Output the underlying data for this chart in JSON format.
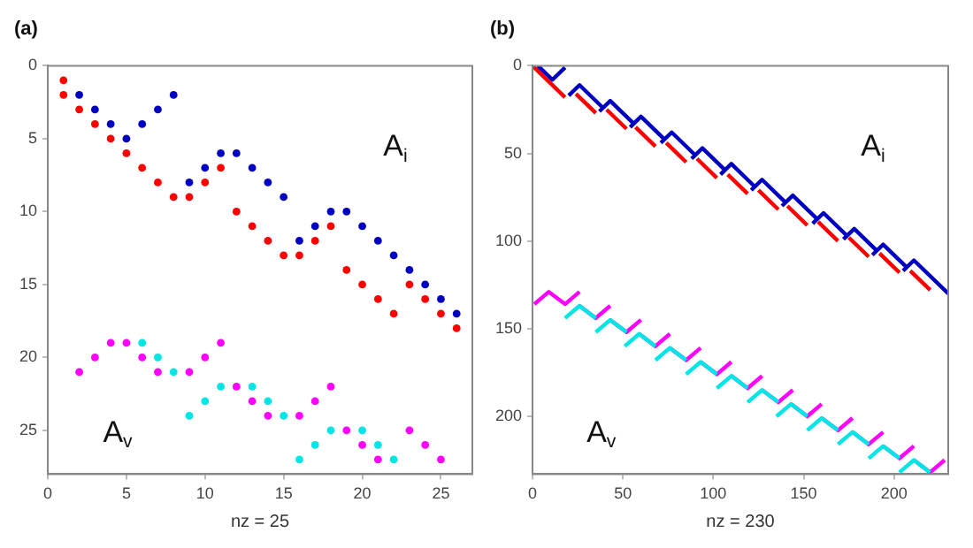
{
  "chart_data": [
    {
      "type": "scatter",
      "title": "(a)",
      "xlabel": "nz = 25",
      "xlim": [
        0,
        27
      ],
      "xticks": [
        0,
        5,
        10,
        15,
        20,
        25
      ],
      "ylim": [
        28,
        0
      ],
      "yticks": [
        0,
        5,
        10,
        15,
        20,
        25
      ],
      "marker": "circle",
      "annotations": [
        "A$_{i}$",
        "A$_{v}$"
      ],
      "series": [
        {
          "color": "#ff0000",
          "x": [
            1,
            1,
            2,
            3,
            4,
            5,
            6,
            7,
            8,
            9,
            10,
            11,
            12,
            13,
            14,
            15,
            16,
            17,
            18,
            19,
            20,
            21,
            22,
            23,
            24,
            25,
            26
          ],
          "values": [
            1,
            2,
            3,
            4,
            5,
            6,
            7,
            8,
            9,
            9,
            8,
            7,
            10,
            11,
            12,
            13,
            13,
            12,
            11,
            14,
            15,
            16,
            17,
            15,
            16,
            17,
            18
          ]
        },
        {
          "color": "#0000c0",
          "x": [
            2,
            3,
            4,
            5,
            6,
            7,
            8,
            9,
            10,
            11,
            12,
            13,
            14,
            15,
            16,
            17,
            18,
            19,
            20,
            21,
            22,
            23,
            24,
            25,
            26
          ],
          "values": [
            2,
            3,
            4,
            5,
            4,
            3,
            2,
            8,
            7,
            6,
            6,
            7,
            8,
            9,
            12,
            11,
            10,
            10,
            11,
            12,
            13,
            14,
            15,
            16,
            17
          ]
        },
        {
          "color": "#ff00ff",
          "x": [
            2,
            3,
            4,
            5,
            6,
            7,
            9,
            10,
            11,
            12,
            13,
            14,
            16,
            17,
            18,
            19,
            20,
            21,
            23,
            24,
            25
          ],
          "values": [
            21,
            20,
            19,
            19,
            20,
            21,
            21,
            20,
            19,
            22,
            23,
            24,
            24,
            23,
            22,
            25,
            26,
            27,
            25,
            26,
            27
          ]
        },
        {
          "color": "#00e5e5",
          "x": [
            6,
            7,
            8,
            9,
            10,
            11,
            13,
            14,
            15,
            16,
            17,
            18,
            20,
            21,
            22
          ],
          "values": [
            19,
            20,
            21,
            24,
            23,
            22,
            22,
            23,
            24,
            27,
            26,
            25,
            25,
            26,
            27
          ]
        }
      ]
    },
    {
      "type": "line",
      "title": "(b)",
      "xlabel": "nz = 230",
      "xlim": [
        0,
        230
      ],
      "xticks": [
        0,
        50,
        100,
        150,
        200
      ],
      "ylim": [
        233,
        0
      ],
      "yticks": [
        0,
        50,
        100,
        150,
        200
      ],
      "line_style": "solid",
      "annotations": [
        "A$_{i}$",
        "A$_{v}$"
      ],
      "series": [
        {
          "color": "#ff0000",
          "x": [
            0,
            18,
            null,
            24,
            35,
            null,
            41,
            52,
            null,
            57,
            68,
            null,
            74,
            85,
            null,
            91,
            102,
            null,
            108,
            119,
            null,
            125,
            136,
            null,
            141,
            152,
            null,
            158,
            169,
            null,
            175,
            186,
            null,
            192,
            203,
            null,
            209,
            220
          ],
          "values": [
            0,
            18,
            null,
            16,
            27,
            null,
            25,
            36,
            null,
            35,
            46,
            null,
            44,
            55,
            null,
            53,
            64,
            null,
            62,
            73,
            null,
            71,
            82,
            null,
            80,
            91,
            null,
            89,
            100,
            null,
            98,
            109,
            null,
            107,
            118,
            null,
            117,
            128
          ]
        },
        {
          "color": "#0000c0",
          "x": [
            3,
            11,
            18,
            null,
            20,
            26,
            39,
            null,
            37,
            43,
            56,
            null,
            54,
            60,
            73,
            null,
            71,
            77,
            90,
            null,
            88,
            94,
            107,
            null,
            104,
            110,
            123,
            null,
            121,
            127,
            140,
            null,
            138,
            144,
            157,
            null,
            155,
            161,
            174,
            null,
            172,
            178,
            191,
            null,
            188,
            194,
            207,
            null,
            205,
            211,
            230
          ],
          "values": [
            0,
            8,
            1,
            null,
            17,
            11,
            24,
            null,
            26,
            20,
            33,
            null,
            35,
            29,
            42,
            null,
            44,
            38,
            51,
            null,
            53,
            47,
            60,
            null,
            62,
            56,
            69,
            null,
            71,
            65,
            78,
            null,
            80,
            74,
            87,
            null,
            90,
            84,
            97,
            null,
            99,
            93,
            106,
            null,
            108,
            102,
            115,
            null,
            117,
            111,
            130
          ]
        },
        {
          "color": "#ff00ff",
          "x": [
            1,
            9,
            18,
            26,
            null,
            26,
            35,
            43,
            null,
            43,
            52,
            60,
            null,
            59,
            68,
            76,
            null,
            76,
            85,
            93,
            null,
            93,
            102,
            110,
            null,
            110,
            119,
            127,
            null,
            127,
            136,
            144,
            null,
            143,
            152,
            160,
            null,
            160,
            169,
            177,
            null,
            177,
            186,
            194,
            null,
            194,
            203,
            211,
            null,
            211,
            220,
            228
          ],
          "values": [
            136,
            129,
            136,
            129,
            null,
            137,
            144,
            137,
            null,
            145,
            152,
            145,
            null,
            153,
            160,
            153,
            null,
            161,
            168,
            161,
            null,
            169,
            176,
            169,
            null,
            177,
            184,
            177,
            null,
            185,
            192,
            185,
            null,
            193,
            200,
            193,
            null,
            201,
            208,
            201,
            null,
            209,
            216,
            209,
            null,
            217,
            224,
            217,
            null,
            225,
            232,
            225
          ]
        },
        {
          "color": "#00e5e5",
          "x": [
            18,
            26,
            35,
            null,
            35,
            43,
            52,
            null,
            51,
            59,
            68,
            null,
            68,
            76,
            85,
            null,
            85,
            93,
            102,
            null,
            102,
            110,
            119,
            null,
            119,
            127,
            136,
            null,
            135,
            143,
            152,
            null,
            152,
            160,
            169,
            null,
            169,
            177,
            186,
            null,
            186,
            194,
            203,
            null,
            203,
            211,
            220
          ],
          "values": [
            144,
            137,
            144,
            null,
            152,
            145,
            152,
            null,
            160,
            153,
            160,
            null,
            168,
            161,
            168,
            null,
            176,
            169,
            176,
            null,
            184,
            177,
            184,
            null,
            192,
            185,
            192,
            null,
            200,
            193,
            200,
            null,
            208,
            201,
            208,
            null,
            216,
            209,
            216,
            null,
            224,
            217,
            224,
            null,
            232,
            225,
            232
          ]
        }
      ]
    }
  ]
}
